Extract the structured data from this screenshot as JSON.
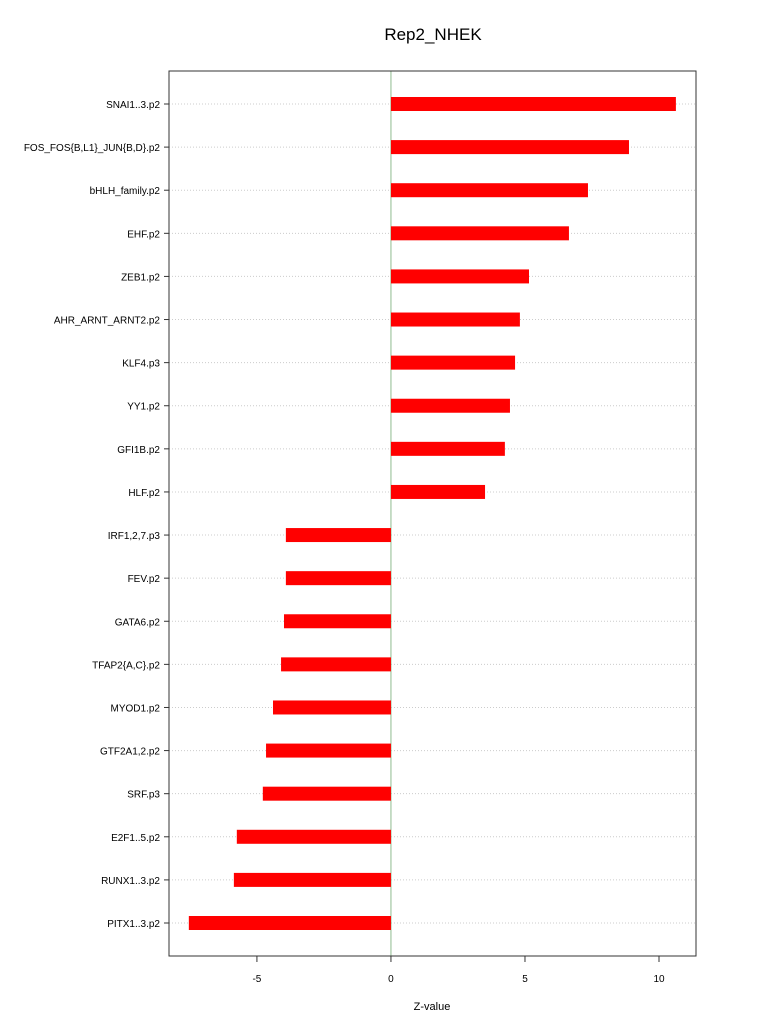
{
  "chart_data": {
    "type": "bar",
    "orientation": "horizontal",
    "title": "Rep2_NHEK",
    "xlabel": "Z-value",
    "ylabel": "",
    "xlim": [
      -8.28,
      11.38
    ],
    "xticks": [
      -5,
      0,
      5,
      10
    ],
    "xtick_labels": [
      "-5",
      "0",
      "5",
      "10"
    ],
    "grid": "horizontal dotted",
    "categories": [
      "SNAI1..3.p2",
      "FOS_FOS{B,L1}_JUN{B,D}.p2",
      "bHLH_family.p2",
      "EHF.p2",
      "ZEB1.p2",
      "AHR_ARNT_ARNT2.p2",
      "KLF4.p3",
      "YY1.p2",
      "GFI1B.p2",
      "HLF.p2",
      "IRF1,2,7.p3",
      "FEV.p2",
      "GATA6.p2",
      "TFAP2{A,C}.p2",
      "MYOD1.p2",
      "GTF2A1,2.p2",
      "SRF.p3",
      "E2F1..5.p2",
      "RUNX1..3.p2",
      "PITX1..3.p2"
    ],
    "values": [
      10.63,
      8.88,
      7.35,
      6.64,
      5.15,
      4.81,
      4.63,
      4.44,
      4.25,
      3.51,
      -3.92,
      -3.92,
      -3.99,
      -4.1,
      -4.4,
      -4.66,
      -4.78,
      -5.75,
      -5.86,
      -7.54
    ],
    "bar_color": "#ff0000",
    "zero_line_color": "#8fbc8f"
  }
}
